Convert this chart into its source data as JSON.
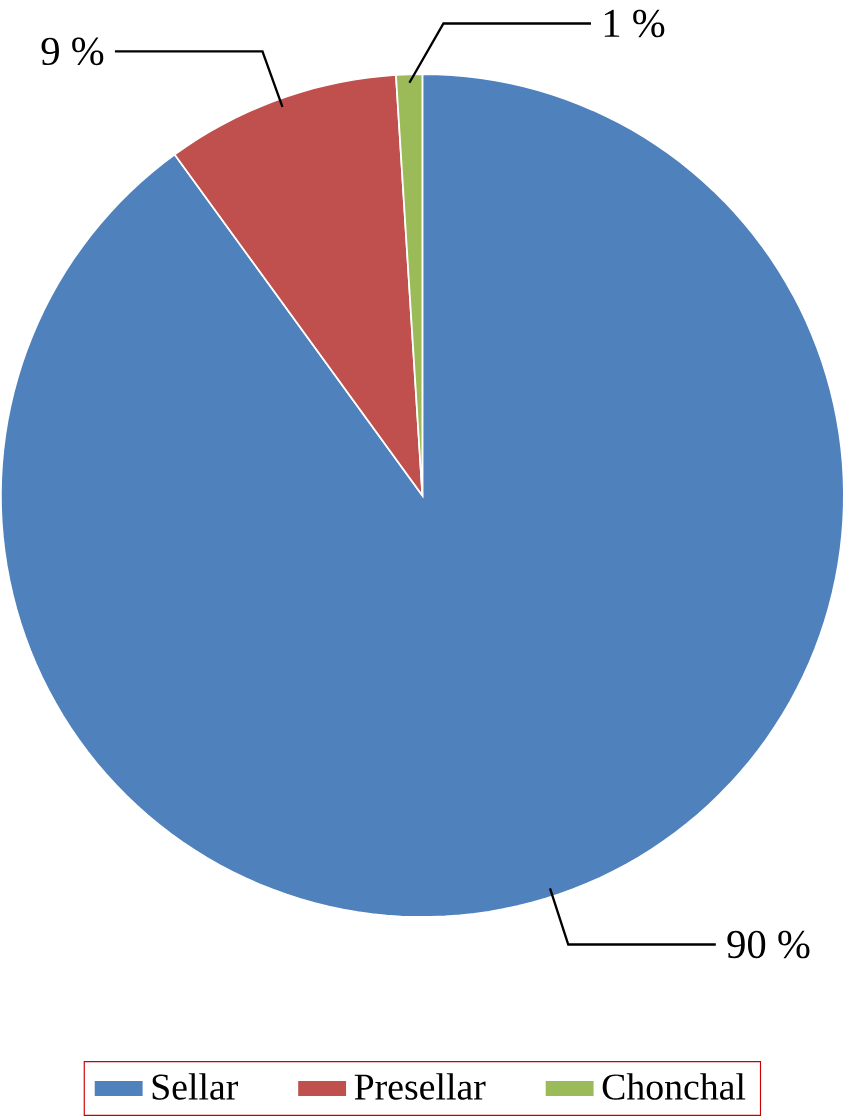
{
  "chart_data": {
    "type": "pie",
    "categories": [
      "Sellar",
      "Presellar",
      "Chonchal"
    ],
    "values": [
      90,
      9,
      1
    ],
    "colors": [
      "#4f81bd",
      "#c0504d",
      "#9bbb59"
    ],
    "value_labels": [
      "90 %",
      "9 %",
      "1 %"
    ],
    "legend": "bottom"
  }
}
